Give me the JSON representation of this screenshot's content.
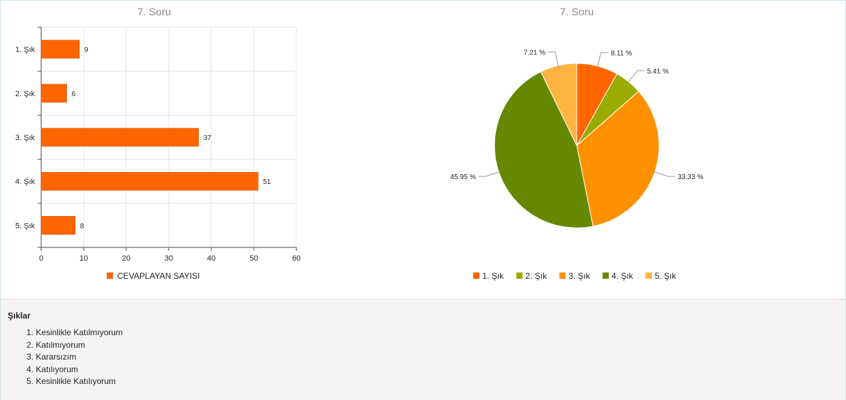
{
  "bar_chart_title": "7. Soru",
  "pie_chart_title": "7. Soru",
  "chart_data": [
    {
      "type": "bar",
      "orientation": "horizontal",
      "title": "7. Soru",
      "categories": [
        "1. Şık",
        "2. Şık",
        "3. Şık",
        "4. Şık",
        "5. Şık"
      ],
      "series": [
        {
          "name": "CEVAPLAYAN SAYISI",
          "values": [
            9,
            6,
            37,
            51,
            8
          ]
        }
      ],
      "xlim": [
        0,
        60
      ],
      "xticks": [
        0,
        10,
        20,
        30,
        40,
        50,
        60
      ],
      "grid": true,
      "legend": "bottom",
      "color": "#ff6600"
    },
    {
      "type": "pie",
      "title": "7. Soru",
      "labels": [
        "1. Şık",
        "2. Şık",
        "3. Şık",
        "4. Şık",
        "5. Şık"
      ],
      "values": [
        8.11,
        5.41,
        33.33,
        45.95,
        7.21
      ],
      "value_labels": [
        "8.11 %",
        "5.41 %",
        "33.33 %",
        "45.95 %",
        "7.21 %"
      ],
      "colors": [
        "#ff6600",
        "#99aa00",
        "#ff9100",
        "#668800",
        "#ffb340"
      ],
      "legend": "bottom"
    }
  ],
  "options": {
    "title": "Şıklar",
    "items": [
      "1. Kesinlikle Katılmıyorum",
      "2. Katılmıyorum",
      "3. Kararsızım",
      "4. Katılıyorum",
      "5. Kesinlikle Katılıyorum"
    ]
  }
}
